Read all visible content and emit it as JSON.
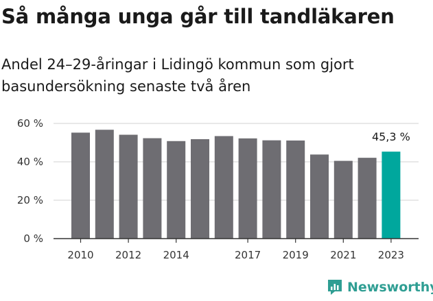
{
  "header": {
    "title": "Så många unga går till tandläkaren",
    "subtitle": "Andel 24–29-åringar i Lidingö kommun som gjort basundersökning senaste två åren"
  },
  "brand": {
    "name": "Newsworthy"
  },
  "colors": {
    "bar": "#6e6d72",
    "highlight": "#00a79d",
    "grid": "#d0d0d0",
    "axis": "#333333"
  },
  "chart_data": {
    "type": "bar",
    "categories": [
      "2010",
      "2011",
      "2012",
      "2013",
      "2014",
      "2015",
      "2016",
      "2017",
      "2018",
      "2019",
      "2020",
      "2021",
      "2022",
      "2023"
    ],
    "values": [
      55.2,
      56.7,
      54.1,
      52.3,
      50.8,
      51.8,
      53.4,
      52.2,
      51.2,
      51.1,
      43.8,
      40.5,
      42.1,
      45.3
    ],
    "xticks": [
      "2010",
      "2012",
      "2014",
      "2017",
      "2019",
      "2021",
      "2023"
    ],
    "yticks": [
      "0 %",
      "20 %",
      "40 %",
      "60 %"
    ],
    "ylim": [
      0,
      60
    ],
    "highlight_index": 13,
    "data_label": "45,3 %",
    "grid": true,
    "xlabel": "",
    "ylabel": ""
  }
}
